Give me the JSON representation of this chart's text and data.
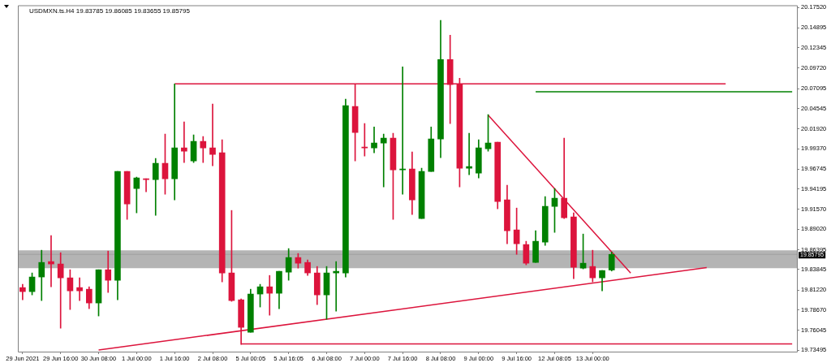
{
  "chart_data": {
    "type": "candlestick",
    "title": "USDMXN.ts.H4 19.83785 19.86085 19.83655 19.85795",
    "categories": [
      "29 Jun 2021",
      null,
      null,
      null,
      "29 Jun 16:00",
      null,
      null,
      null,
      "30 Jun 08:00",
      null,
      null,
      null,
      "1 Jul 00:00",
      null,
      null,
      null,
      "1 Jul 16:00",
      null,
      null,
      null,
      "2 Jul 08:00",
      null,
      null,
      null,
      "5 Jul 00:05",
      null,
      null,
      null,
      "5 Jul 16:05",
      null,
      null,
      null,
      "6 Jul 08:00",
      null,
      null,
      null,
      "7 Jul 00:00",
      null,
      null,
      null,
      "7 Jul 16:00",
      null,
      null,
      null,
      "8 Jul 08:00",
      null,
      null,
      null,
      "9 Jul 00:00",
      null,
      null,
      null,
      "9 Jul 16:00",
      null,
      null,
      null,
      "12 Jul 08:05",
      null,
      null,
      null,
      "13 Jul 00:00",
      null,
      null,
      null,
      null,
      null,
      null,
      null,
      null,
      null,
      null,
      null,
      null,
      null,
      null,
      null,
      null,
      null,
      null,
      null,
      null,
      null
    ],
    "ohlc": [
      [
        19.8153,
        19.8195,
        19.7996,
        19.8101
      ],
      [
        19.8101,
        19.8341,
        19.8059,
        19.8289
      ],
      [
        19.8289,
        19.8633,
        19.7986,
        19.8476
      ],
      [
        19.8487,
        19.8821,
        19.8163,
        19.8456
      ],
      [
        19.8456,
        19.8601,
        19.7631,
        19.8278
      ],
      [
        19.8278,
        19.8382,
        19.7871,
        19.8111
      ],
      [
        19.8153,
        19.8278,
        19.7986,
        19.8111
      ],
      [
        19.8132,
        19.8163,
        19.7882,
        19.7955
      ],
      [
        19.7955,
        19.8382,
        19.7788,
        19.8382
      ],
      [
        19.8382,
        19.8622,
        19.809,
        19.8247
      ],
      [
        19.8247,
        19.9645,
        19.7996,
        19.9645
      ],
      [
        19.9645,
        19.9645,
        19.9029,
        19.9227
      ],
      [
        19.9426,
        19.9572,
        19.9113,
        19.9561
      ],
      [
        19.9551,
        19.9551,
        19.9384,
        19.954
      ],
      [
        19.954,
        19.9812,
        19.9081,
        19.9749
      ],
      [
        19.9749,
        20.0125,
        19.9353,
        19.9551
      ],
      [
        19.9551,
        20.0771,
        19.928,
        19.9947
      ],
      [
        19.9947,
        20.0281,
        19.976,
        19.9906
      ],
      [
        19.978,
        20.0114,
        19.976,
        20.0031
      ],
      [
        20.0031,
        20.0093,
        19.976,
        19.9947
      ],
      [
        19.9947,
        20.0511,
        19.9718,
        19.9864
      ],
      [
        19.9885,
        20.0052,
        19.8226,
        19.8341
      ],
      [
        19.8341,
        19.9144,
        19.7976,
        19.7986
      ],
      [
        19.7996,
        19.8007,
        19.7423,
        19.7642
      ],
      [
        19.7579,
        19.8132,
        19.7579,
        19.807
      ],
      [
        19.807,
        19.8195,
        19.7903,
        19.8163
      ],
      [
        19.8163,
        19.8309,
        19.7798,
        19.808
      ],
      [
        19.808,
        19.8362,
        19.7882,
        19.8362
      ],
      [
        19.8351,
        19.8654,
        19.8247,
        19.8539
      ],
      [
        19.8539,
        19.8591,
        19.8403,
        19.8466
      ],
      [
        19.8476,
        19.8508,
        19.8309,
        19.8341
      ],
      [
        19.8341,
        19.8424,
        19.7934,
        19.8059
      ],
      [
        19.8059,
        19.8424,
        19.7746,
        19.8341
      ],
      [
        19.8341,
        19.8487,
        19.785,
        19.8362
      ],
      [
        19.8341,
        20.0573,
        19.8289,
        20.049
      ],
      [
        20.0479,
        20.0771,
        19.978,
        20.0145
      ],
      [
        19.9958,
        20.026,
        19.9843,
        19.9947
      ],
      [
        19.9947,
        20.0218,
        19.9885,
        20.001
      ],
      [
        20.001,
        20.0125,
        19.9446,
        20.0072
      ],
      [
        20.0072,
        20.0135,
        19.9029,
        19.9666
      ],
      [
        19.9666,
        20.099,
        19.9353,
        19.9676
      ],
      [
        19.9676,
        19.9895,
        19.9092,
        19.928
      ],
      [
        19.904,
        19.9686,
        19.904,
        19.9645
      ],
      [
        19.9645,
        20.0218,
        19.9645,
        20.0062
      ],
      [
        20.0062,
        20.1585,
        19.9822,
        20.1084
      ],
      [
        20.1084,
        20.1397,
        20.026,
        20.0761
      ],
      [
        20.0761,
        20.0844,
        19.9446,
        19.9686
      ],
      [
        19.9686,
        20.0135,
        19.9603,
        19.9707
      ],
      [
        19.9624,
        20.0052,
        19.9561,
        19.9947
      ],
      [
        19.9937,
        20.0375,
        19.9906,
        20.001
      ],
      [
        20.002,
        20.002,
        19.9165,
        19.9259
      ],
      [
        19.928,
        19.9467,
        19.8716,
        19.8883
      ],
      [
        19.8894,
        19.9175,
        19.858,
        19.8716
      ],
      [
        19.8706,
        19.8748,
        19.8445,
        19.8466
      ],
      [
        19.8476,
        19.8883,
        19.8476,
        19.8748
      ],
      [
        19.8737,
        19.9321,
        19.8695,
        19.9196
      ],
      [
        19.9196,
        19.9426,
        19.8862,
        19.93
      ],
      [
        19.93,
        20.0072,
        19.904,
        19.905
      ],
      [
        19.9061,
        19.9113,
        19.8268,
        19.8414
      ],
      [
        19.8403,
        19.8841,
        19.8393,
        19.8466
      ],
      [
        19.8424,
        19.8633,
        19.8226,
        19.8278
      ],
      [
        19.8278,
        19.8372,
        19.8111,
        19.8372
      ],
      [
        19.83785,
        19.86085,
        19.83655,
        19.85795
      ],
      null,
      null,
      null,
      null,
      null,
      null,
      null,
      null,
      null,
      null,
      null,
      null,
      null,
      null,
      null,
      null,
      null,
      null,
      null
    ],
    "colors": [
      "#dc143c",
      "#008000",
      "#008000",
      "#dc143c",
      "#dc143c",
      "#dc143c",
      "#dc143c",
      "#dc143c",
      "#008000",
      "#dc143c",
      "#008000",
      "#dc143c",
      "#008000",
      "#dc143c",
      "#008000",
      "#dc143c",
      "#008000",
      "#dc143c",
      "#008000",
      "#dc143c",
      "#dc143c",
      "#dc143c",
      "#dc143c",
      "#dc143c",
      "#008000",
      "#008000",
      "#dc143c",
      "#008000",
      "#008000",
      "#dc143c",
      "#dc143c",
      "#dc143c",
      "#008000",
      "#008000",
      "#008000",
      "#dc143c",
      "#dc143c",
      "#008000",
      "#008000",
      "#dc143c",
      "#008000",
      "#dc143c",
      "#008000",
      "#008000",
      "#008000",
      "#dc143c",
      "#dc143c",
      "#008000",
      "#008000",
      "#008000",
      "#dc143c",
      "#dc143c",
      "#dc143c",
      "#dc143c",
      "#008000",
      "#008000",
      "#008000",
      "#dc143c",
      "#dc143c",
      "#008000",
      "#dc143c",
      "#008000",
      "#008000",
      null,
      null,
      null,
      null,
      null,
      null,
      null,
      null,
      null,
      null,
      null,
      null,
      null,
      null,
      null,
      null,
      null,
      null,
      null
    ],
    "series": [
      {
        "type": "line",
        "color": "#dc143c",
        "values": [
          null,
          null,
          null,
          null,
          null,
          null,
          null,
          null,
          19.735,
          null,
          null,
          null,
          null,
          null,
          null,
          null,
          null,
          null,
          null,
          null,
          null,
          null,
          null,
          null,
          null,
          null,
          null,
          null,
          null,
          null,
          null,
          null,
          null,
          null,
          null,
          null,
          null,
          null,
          null,
          null,
          null,
          null,
          null,
          null,
          null,
          null,
          null,
          null,
          null,
          null,
          null,
          null,
          null,
          null,
          null,
          null,
          null,
          null,
          null,
          null,
          null,
          null,
          null,
          null,
          null,
          null,
          null,
          null,
          null,
          null,
          null,
          null,
          19.841,
          null,
          null,
          null,
          null,
          null,
          null,
          null,
          null,
          null
        ]
      },
      {
        "type": "line",
        "color": "#dc143c",
        "values": [
          null,
          null,
          null,
          null,
          null,
          null,
          null,
          null,
          null,
          null,
          null,
          null,
          null,
          null,
          null,
          null,
          null,
          null,
          null,
          null,
          null,
          null,
          null,
          null,
          null,
          null,
          null,
          null,
          null,
          null,
          null,
          null,
          null,
          null,
          null,
          null,
          null,
          null,
          null,
          null,
          null,
          null,
          null,
          null,
          null,
          null,
          null,
          null,
          null,
          20.037,
          null,
          null,
          null,
          null,
          null,
          null,
          null,
          null,
          null,
          null,
          null,
          null,
          null,
          null,
          19.834,
          null,
          null,
          null,
          null,
          null,
          null,
          null,
          null,
          null,
          null,
          null,
          null,
          null,
          null,
          null,
          null,
          null
        ]
      },
      {
        "type": "line",
        "color": "#dc143c",
        "values": [
          null,
          null,
          null,
          null,
          null,
          null,
          null,
          null,
          null,
          null,
          null,
          null,
          null,
          null,
          null,
          null,
          20.077,
          null,
          null,
          null,
          null,
          null,
          null,
          null,
          null,
          null,
          null,
          null,
          null,
          null,
          null,
          null,
          null,
          null,
          null,
          null,
          null,
          null,
          null,
          null,
          null,
          null,
          null,
          null,
          null,
          null,
          null,
          null,
          null,
          null,
          null,
          null,
          null,
          null,
          null,
          null,
          null,
          null,
          null,
          null,
          null,
          null,
          null,
          null,
          null,
          null,
          null,
          null,
          null,
          null,
          null,
          null,
          null,
          null,
          20.077,
          null,
          null,
          null,
          null,
          null,
          null,
          null
        ]
      },
      {
        "type": "line",
        "color": "#008000",
        "values": [
          null,
          null,
          null,
          null,
          null,
          null,
          null,
          null,
          null,
          null,
          null,
          null,
          null,
          null,
          null,
          null,
          null,
          null,
          null,
          null,
          null,
          null,
          null,
          null,
          null,
          null,
          null,
          null,
          null,
          null,
          null,
          null,
          null,
          null,
          null,
          null,
          null,
          null,
          null,
          null,
          null,
          null,
          null,
          null,
          null,
          null,
          null,
          null,
          null,
          null,
          null,
          null,
          null,
          null,
          20.067,
          null,
          null,
          null,
          null,
          null,
          null,
          null,
          null,
          null,
          null,
          null,
          null,
          null,
          null,
          null,
          null,
          null,
          null,
          null,
          null,
          null,
          null,
          null,
          null,
          null,
          null,
          20.067
        ]
      },
      {
        "type": "line",
        "color": "#dc143c",
        "values": [
          null,
          null,
          null,
          null,
          null,
          null,
          null,
          null,
          null,
          null,
          null,
          null,
          null,
          null,
          null,
          null,
          null,
          null,
          null,
          null,
          null,
          null,
          null,
          19.743,
          null,
          null,
          null,
          null,
          null,
          null,
          null,
          null,
          null,
          null,
          null,
          null,
          null,
          null,
          null,
          null,
          null,
          null,
          null,
          null,
          null,
          null,
          null,
          null,
          null,
          null,
          null,
          null,
          null,
          null,
          null,
          null,
          null,
          null,
          null,
          null,
          null,
          null,
          null,
          null,
          null,
          null,
          null,
          null,
          null,
          null,
          null,
          null,
          null,
          null,
          null,
          null,
          null,
          null,
          null,
          null,
          null,
          19.743
        ]
      }
    ],
    "bands": [
      {
        "axis": "y",
        "from": 19.8402,
        "to": 19.8631,
        "color": "#b4b4b4"
      }
    ],
    "ref_lines": [
      {
        "axis": "y",
        "value": 19.85795,
        "label": "19.85795",
        "color": "#a0a0a0"
      }
    ],
    "ylim": [
      19.733,
      20.178
    ],
    "yticks": [
      {
        "value": 20.1752,
        "label": "20.17520"
      },
      {
        "value": 20.14895,
        "label": "20.14895"
      },
      {
        "value": 20.12345,
        "label": "20.12345"
      },
      {
        "value": 20.0972,
        "label": "20.09720"
      },
      {
        "value": 20.07095,
        "label": "20.07095"
      },
      {
        "value": 20.04545,
        "label": "20.04545"
      },
      {
        "value": 20.0192,
        "label": "20.01920"
      },
      {
        "value": 19.9937,
        "label": "19.99370"
      },
      {
        "value": 19.96745,
        "label": "19.96745"
      },
      {
        "value": 19.94195,
        "label": "19.94195"
      },
      {
        "value": 19.9157,
        "label": "19.91570"
      },
      {
        "value": 19.8902,
        "label": "19.89020"
      },
      {
        "value": 19.86395,
        "label": "19.86395"
      },
      {
        "value": 19.83845,
        "label": "19.83845"
      },
      {
        "value": 19.8122,
        "label": "19.81220"
      },
      {
        "value": 19.7867,
        "label": "19.78670"
      },
      {
        "value": 19.76045,
        "label": "19.76045"
      },
      {
        "value": 19.73495,
        "label": "19.73495"
      }
    ],
    "marker": "none"
  }
}
